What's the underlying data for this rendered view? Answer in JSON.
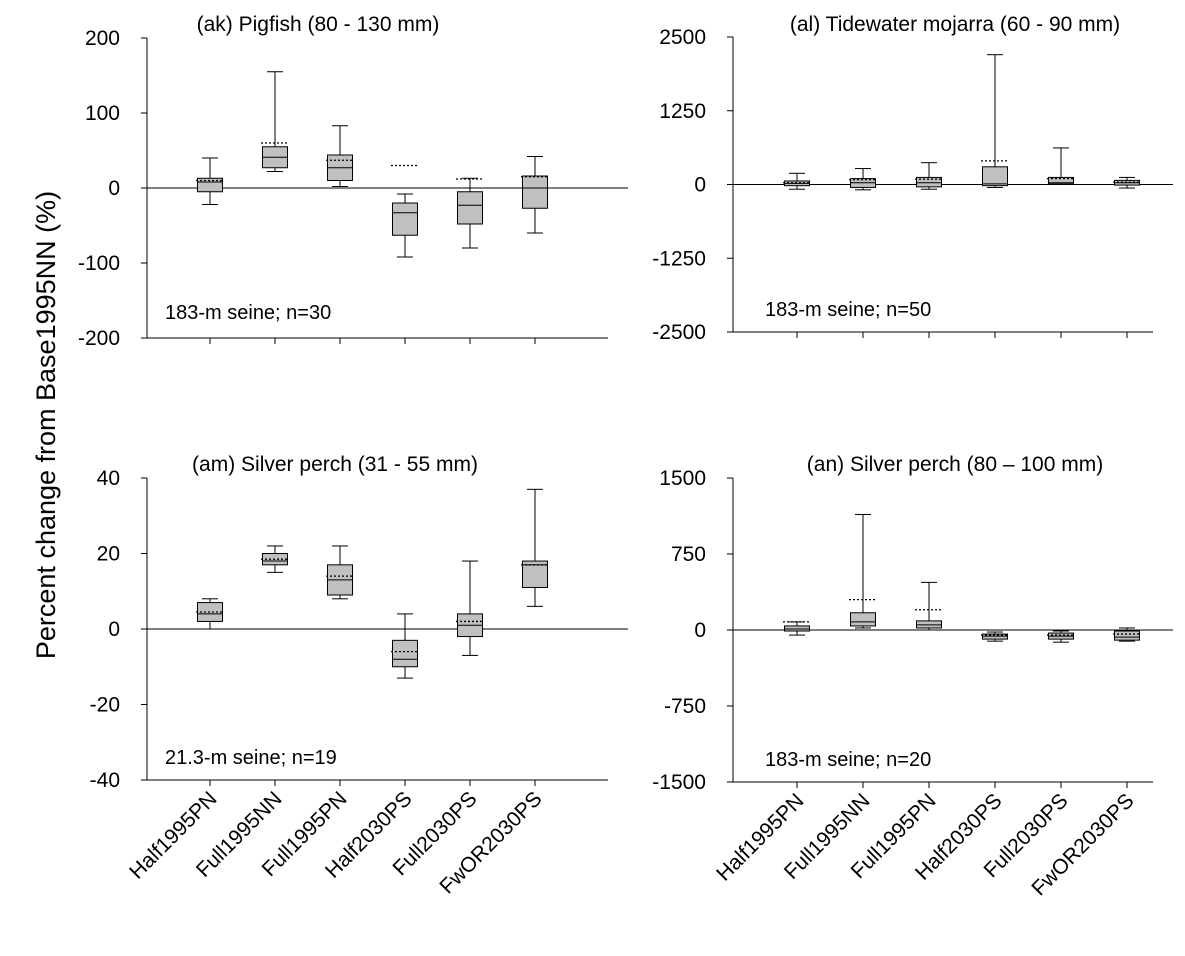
{
  "ylabel": "Percent change from Base1995NN (%)",
  "chart_data": [
    {
      "type": "box",
      "title": "(ak) Pigfish (80 - 130 mm)",
      "annotation": "183-m seine; n=30",
      "ylim": [
        -200,
        200
      ],
      "yticks": [
        "200",
        "100",
        "0",
        "-100",
        "-200"
      ],
      "ytick_values": [
        200,
        100,
        0,
        -100,
        -200
      ],
      "categories": [
        "Half1995PN",
        "Full1995NN",
        "Full1995PN",
        "Half2030PS",
        "Full2030PS",
        "FwOR2030PS"
      ],
      "boxes": [
        {
          "min": -22,
          "q1": -5,
          "median": 8,
          "q3": 13,
          "max": 40,
          "mean": 10
        },
        {
          "min": 22,
          "q1": 27,
          "median": 41,
          "q3": 55,
          "max": 155,
          "mean": 60
        },
        {
          "min": 2,
          "q1": 10,
          "median": 27,
          "q3": 44,
          "max": 83,
          "mean": 37
        },
        {
          "min": -92,
          "q1": -63,
          "median": -33,
          "q3": -20,
          "max": -8,
          "mean": 30
        },
        {
          "min": -80,
          "q1": -48,
          "median": -23,
          "q3": -5,
          "max": 13,
          "mean": 12
        },
        {
          "min": -60,
          "q1": -27,
          "median": 0,
          "q3": 16,
          "max": 42,
          "mean": 15
        }
      ]
    },
    {
      "type": "box",
      "title": "(al) Tidewater mojarra (60 - 90 mm)",
      "annotation": "183-m seine; n=50",
      "ylim": [
        -2500,
        2500
      ],
      "yticks": [
        "2500",
        "1250",
        "0",
        "-1250",
        "-2500"
      ],
      "ytick_values": [
        2500,
        1250,
        0,
        -1250,
        -2500
      ],
      "categories": [
        "Half1995PN",
        "Full1995NN",
        "Full1995PN",
        "Half2030PS",
        "Full2030PS",
        "FwOR2030PS"
      ],
      "boxes": [
        {
          "min": -80,
          "q1": -20,
          "median": 20,
          "q3": 60,
          "max": 190,
          "mean": 30
        },
        {
          "min": -90,
          "q1": -50,
          "median": 30,
          "q3": 100,
          "max": 270,
          "mean": 80
        },
        {
          "min": -80,
          "q1": -40,
          "median": 30,
          "q3": 120,
          "max": 370,
          "mean": 90
        },
        {
          "min": -50,
          "q1": -20,
          "median": 10,
          "q3": 300,
          "max": 2200,
          "mean": 400
        },
        {
          "min": 0,
          "q1": 10,
          "median": 30,
          "q3": 120,
          "max": 620,
          "mean": 100
        },
        {
          "min": -60,
          "q1": -10,
          "median": 30,
          "q3": 70,
          "max": 120,
          "mean": 40
        }
      ]
    },
    {
      "type": "box",
      "title": "(am) Silver perch (31 - 55 mm)",
      "annotation": "21.3-m seine; n=19",
      "ylim": [
        -40,
        40
      ],
      "yticks": [
        "40",
        "20",
        "0",
        "-20",
        "-40"
      ],
      "ytick_values": [
        40,
        20,
        0,
        -20,
        -40
      ],
      "categories": [
        "Half1995PN",
        "Full1995NN",
        "Full1995PN",
        "Half2030PS",
        "Full2030PS",
        "FwOR2030PS"
      ],
      "boxes": [
        {
          "min": 0,
          "q1": 2,
          "median": 4,
          "q3": 7,
          "max": 8,
          "mean": 4.5
        },
        {
          "min": 15,
          "q1": 17,
          "median": 18,
          "q3": 20,
          "max": 22,
          "mean": 18.5
        },
        {
          "min": 8,
          "q1": 9,
          "median": 13,
          "q3": 17,
          "max": 22,
          "mean": 14
        },
        {
          "min": -13,
          "q1": -10,
          "median": -8,
          "q3": -3,
          "max": 4,
          "mean": -6
        },
        {
          "min": -7,
          "q1": -2,
          "median": 1,
          "q3": 4,
          "max": 18,
          "mean": 2
        },
        {
          "min": 6,
          "q1": 11,
          "median": 17,
          "q3": 18,
          "max": 37,
          "mean": 17
        }
      ]
    },
    {
      "type": "box",
      "title": "(an) Silver perch (80 – 100 mm)",
      "annotation": "183-m seine; n=20",
      "ylim": [
        -1500,
        1500
      ],
      "yticks": [
        "1500",
        "750",
        "0",
        "-750",
        "-1500"
      ],
      "ytick_values": [
        1500,
        750,
        0,
        -750,
        -1500
      ],
      "categories": [
        "Half1995PN",
        "Full1995NN",
        "Full1995PN",
        "Half2030PS",
        "Full2030PS",
        "FwOR2030PS"
      ],
      "boxes": [
        {
          "min": -50,
          "q1": -10,
          "median": 10,
          "q3": 40,
          "max": 80,
          "mean": 80
        },
        {
          "min": 20,
          "q1": 40,
          "median": 80,
          "q3": 170,
          "max": 1140,
          "mean": 300
        },
        {
          "min": 0,
          "q1": 20,
          "median": 50,
          "q3": 90,
          "max": 470,
          "mean": 200
        },
        {
          "min": -110,
          "q1": -90,
          "median": -60,
          "q3": -40,
          "max": -20,
          "mean": -50
        },
        {
          "min": -120,
          "q1": -90,
          "median": -60,
          "q3": -30,
          "max": -10,
          "mean": -50
        },
        {
          "min": -110,
          "q1": -100,
          "median": -70,
          "q3": -10,
          "max": 20,
          "mean": -40
        }
      ]
    }
  ]
}
